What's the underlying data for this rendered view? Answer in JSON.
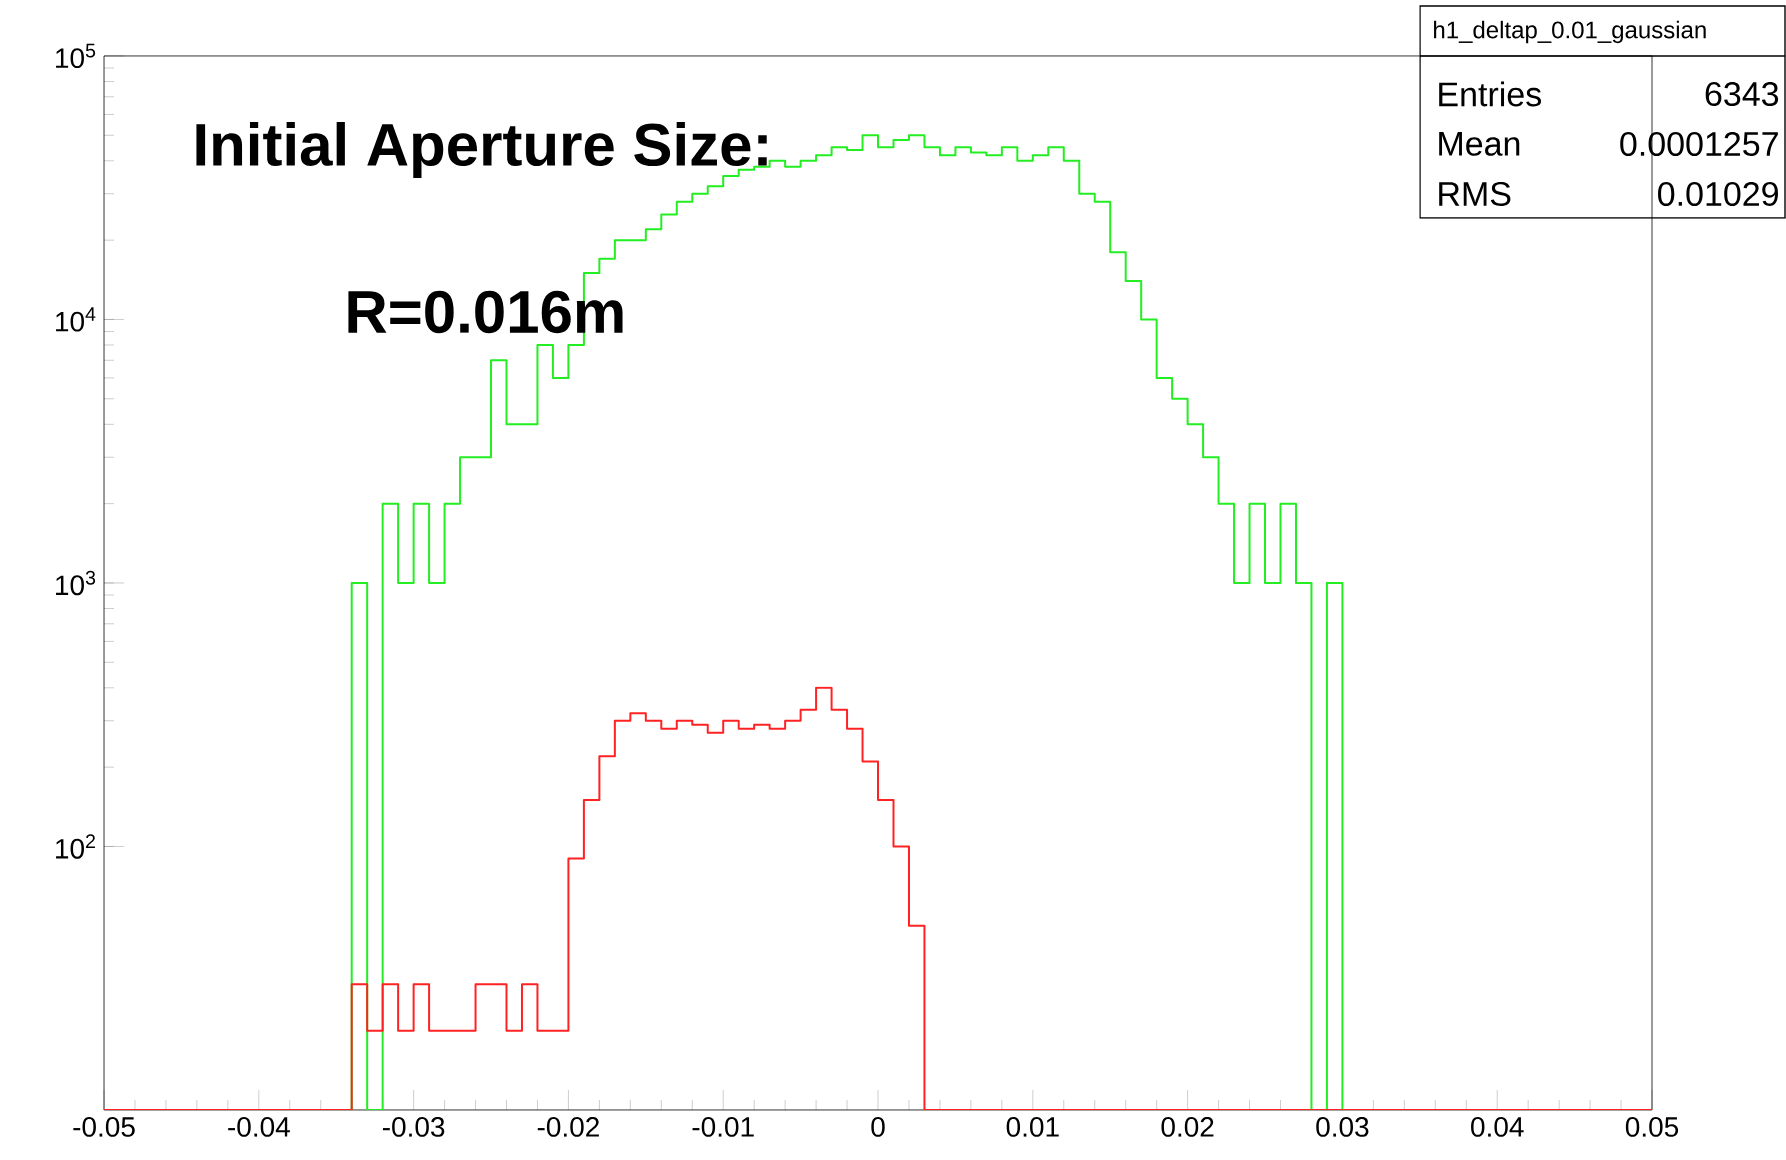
{
  "chart_data": {
    "type": "histogram",
    "bins": [
      -0.05,
      -0.049,
      -0.048,
      -0.047,
      -0.046,
      -0.045,
      -0.044,
      -0.043,
      -0.042,
      -0.041,
      -0.04,
      -0.039,
      -0.038,
      -0.037,
      -0.036,
      -0.035,
      -0.034,
      -0.033,
      -0.032,
      -0.031,
      -0.03,
      -0.029,
      -0.028,
      -0.027,
      -0.026,
      -0.025,
      -0.024,
      -0.023,
      -0.022,
      -0.021,
      -0.02,
      -0.019,
      -0.018,
      -0.017,
      -0.016,
      -0.015,
      -0.014,
      -0.013,
      -0.012,
      -0.011,
      -0.01,
      -0.009,
      -0.008,
      -0.007,
      -0.006,
      -0.005,
      -0.004,
      -0.003,
      -0.002,
      -0.001,
      0,
      0.001,
      0.002,
      0.003,
      0.004,
      0.005,
      0.006,
      0.007,
      0.008,
      0.009,
      0.01,
      0.011,
      0.012,
      0.013,
      0.014,
      0.015,
      0.016,
      0.017,
      0.018,
      0.019,
      0.02,
      0.021,
      0.022,
      0.023,
      0.024,
      0.025,
      0.026,
      0.027,
      0.028,
      0.029,
      0.03,
      0.031,
      0.032,
      0.033,
      0.034,
      0.035,
      0.036,
      0.037,
      0.038,
      0.039,
      0.04,
      0.041,
      0.042,
      0.043,
      0.044,
      0.045,
      0.046,
      0.047,
      0.048,
      0.049,
      0.05
    ],
    "series": [
      {
        "color": "#22ee22",
        "values": [
          null,
          null,
          null,
          null,
          null,
          null,
          null,
          null,
          null,
          null,
          null,
          null,
          null,
          null,
          null,
          null,
          1000,
          null,
          2000,
          1000,
          2000,
          1000,
          2000,
          3000,
          3000,
          7000,
          4000,
          4000,
          8000,
          6000,
          8000,
          15000,
          17000,
          20000,
          20000,
          22000,
          25000,
          28000,
          30000,
          32000,
          35000,
          37000,
          38000,
          40000,
          38000,
          40000,
          42000,
          45000,
          44000,
          50000,
          45000,
          48000,
          50000,
          45000,
          42000,
          45000,
          43000,
          42000,
          45000,
          40000,
          42000,
          45000,
          40000,
          30000,
          28000,
          18000,
          14000,
          10000,
          6000,
          5000,
          4000,
          3000,
          2000,
          1000,
          2000,
          1000,
          2000,
          1000,
          null,
          1000,
          null,
          null,
          null,
          null,
          null,
          null,
          null,
          null,
          null,
          null,
          null,
          null,
          null,
          null,
          null,
          null,
          null,
          null,
          null,
          null
        ]
      },
      {
        "color": "#ff2222",
        "values": [
          null,
          null,
          null,
          null,
          null,
          null,
          null,
          null,
          null,
          null,
          null,
          null,
          null,
          null,
          null,
          null,
          30,
          20,
          30,
          20,
          30,
          20,
          20,
          20,
          30,
          30,
          20,
          30,
          20,
          20,
          90,
          150,
          220,
          300,
          320,
          300,
          280,
          300,
          290,
          270,
          300,
          280,
          290,
          280,
          300,
          330,
          400,
          330,
          280,
          210,
          150,
          100,
          50,
          null,
          null,
          null,
          null,
          null,
          null,
          null,
          null,
          null,
          null,
          null,
          null,
          null,
          null,
          null,
          null,
          null,
          null,
          null,
          null,
          null,
          null,
          null,
          null,
          null,
          null,
          null,
          null,
          null,
          null,
          null,
          null,
          null,
          null,
          null,
          null,
          null,
          null,
          null,
          null,
          null,
          null,
          null,
          null,
          null,
          null,
          null
        ]
      }
    ],
    "log": "y",
    "xlim": [
      -0.05,
      0.05
    ],
    "xticks": [
      -0.05,
      -0.04,
      -0.03,
      -0.02,
      -0.01,
      0,
      0.01,
      0.02,
      0.03,
      0.04,
      0.05
    ],
    "ylim": [
      10,
      100000
    ],
    "yticks": [
      {
        "value": 100,
        "label": "10$^{2}$"
      },
      {
        "value": 1000,
        "label": "10$^{3}$"
      },
      {
        "value": 10000,
        "label": "10$^{4}$"
      },
      {
        "value": 100000,
        "label": "10$^{5}$"
      }
    ],
    "annotations": [
      "Initial Aperture Size:",
      "R=0.016m",
      "h1_deltap_0.01_gaussian",
      "Entries",
      "6343",
      "Mean",
      "0.0001257",
      "RMS",
      "0.01029"
    ]
  }
}
